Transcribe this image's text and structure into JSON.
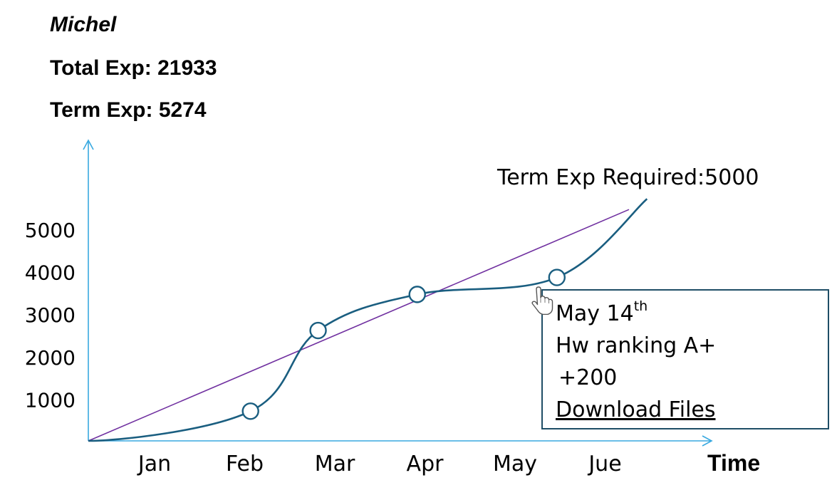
{
  "student": {
    "name": "Michel",
    "total_exp": "Total Exp: 21933",
    "term_exp": "Term Exp: 5274"
  },
  "colors": {
    "axis": "#39a9e0",
    "progress_line": "#1a5e80",
    "target_line": "#7030a0",
    "tooltip_border": "#1f4e66"
  },
  "chart_data": {
    "type": "line",
    "x_categories": [
      "Jan",
      "Feb",
      "Mar",
      "Apr",
      "May",
      "Jue"
    ],
    "x_title": "Time",
    "y_ticks": [
      1000,
      2000,
      3000,
      4000,
      5000
    ],
    "ylim": [
      0,
      5000
    ],
    "grid": false,
    "series": [
      {
        "role": "progress",
        "x": [
          0,
          1.8,
          2.55,
          3.65,
          5.2,
          6.2
        ],
        "y": [
          0,
          700,
          2600,
          3450,
          3850,
          5700
        ],
        "points_marked": [
          1,
          2,
          3,
          4
        ]
      },
      {
        "role": "target",
        "x": [
          0,
          6.0
        ],
        "y": [
          0,
          5450
        ]
      }
    ],
    "target_label": "Term Exp Required:5000"
  },
  "tooltip": {
    "date_main": "May 14",
    "date_suffix": "th",
    "event": "Hw ranking A+",
    "points": "+200",
    "link_label": "Download Files"
  },
  "cursor": {
    "icon": "hand-pointer-icon"
  }
}
